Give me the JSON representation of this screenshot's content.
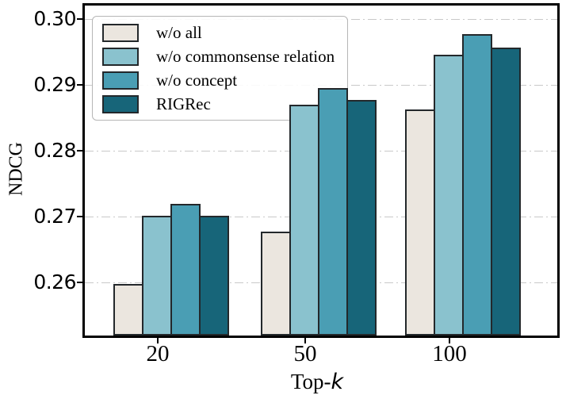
{
  "chart_data": {
    "type": "bar",
    "title": "",
    "xlabel": "Top-k",
    "ylabel": "NDCG",
    "categories": [
      "20",
      "50",
      "100"
    ],
    "series": [
      {
        "name": "w/o all",
        "color": "#ebe6df",
        "values": [
          0.2598,
          0.2678,
          0.2862
        ]
      },
      {
        "name": "w/o commonsense relation",
        "color": "#8ac2ce",
        "values": [
          0.2701,
          0.287,
          0.2946
        ]
      },
      {
        "name": "w/o concept",
        "color": "#4a9eb4",
        "values": [
          0.272,
          0.2895,
          0.2977
        ]
      },
      {
        "name": "RIGRec",
        "color": "#176579",
        "values": [
          0.2702,
          0.2877,
          0.2956
        ]
      }
    ],
    "ylim": [
      0.252,
      0.302
    ],
    "y_ticks": [
      0.26,
      0.27,
      0.28,
      0.29,
      0.3
    ],
    "y_tick_labels": [
      "0.26",
      "0.27",
      "0.28",
      "0.29",
      "0.30"
    ],
    "grid": "horizontal dash-dot",
    "legend_position": "upper left",
    "bar_edge_color": "#23282b",
    "gridline_color": "#c9c9c9",
    "spine_color": "#000000"
  },
  "axes": {
    "xlabel_prefix": "Top-",
    "xlabel_italic": "k",
    "ylabel": "NDCG"
  }
}
